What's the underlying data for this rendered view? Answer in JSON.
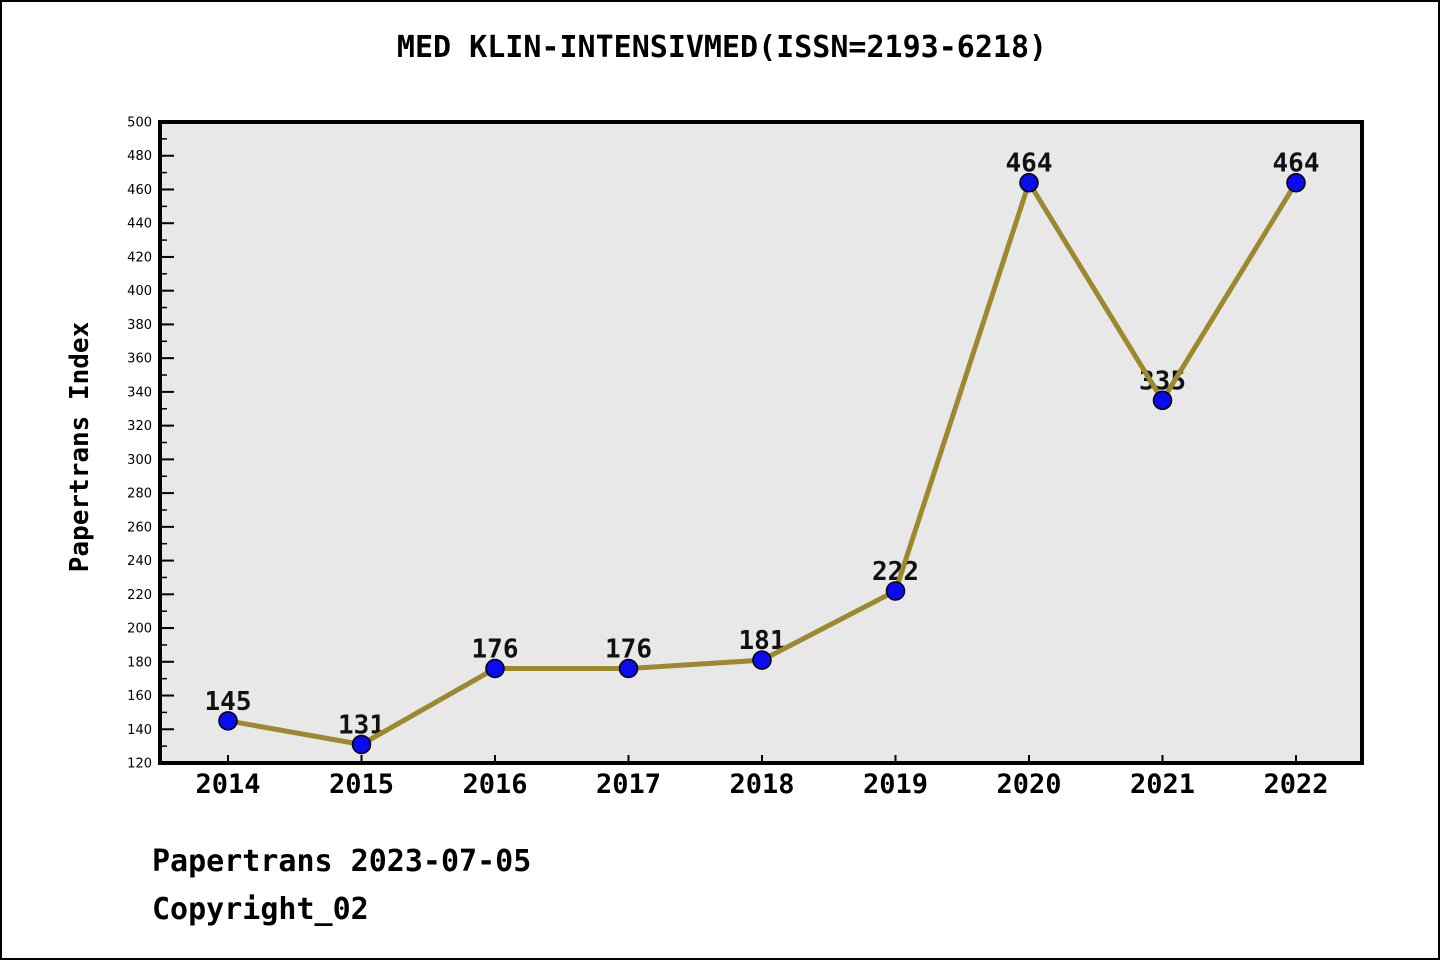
{
  "figure": {
    "title": "MED KLIN-INTENSIVMED(ISSN=2193-6218)",
    "footer_line1": "Papertrans 2023-07-05",
    "footer_line2": "Copyright_02"
  },
  "chart_data": {
    "type": "line",
    "title": "MED KLIN-INTENSIVMED(ISSN=2193-6218)",
    "x": [
      2014,
      2015,
      2016,
      2017,
      2018,
      2019,
      2020,
      2021,
      2022
    ],
    "series": [
      {
        "name": "Papertrans Index",
        "values": [
          145,
          131,
          176,
          176,
          181,
          222,
          464,
          335,
          464
        ]
      }
    ],
    "point_labels": [
      "145",
      "131",
      "176",
      "176",
      "181",
      "222",
      "464",
      "335",
      "464"
    ],
    "xlabel": "",
    "ylabel": "Papertrans Index",
    "ylim": [
      120,
      500
    ],
    "y_major_step": 20,
    "y_minor_step": 10,
    "grid": false,
    "legend_position": "none",
    "colors": {
      "line": "#9e882f",
      "marker_fill": "#0b0bf0",
      "marker_edge": "#000000",
      "plot_background": "#e8e8e8",
      "figure_background": "#ffffff",
      "frame": "#000000",
      "text": "#000000"
    }
  }
}
